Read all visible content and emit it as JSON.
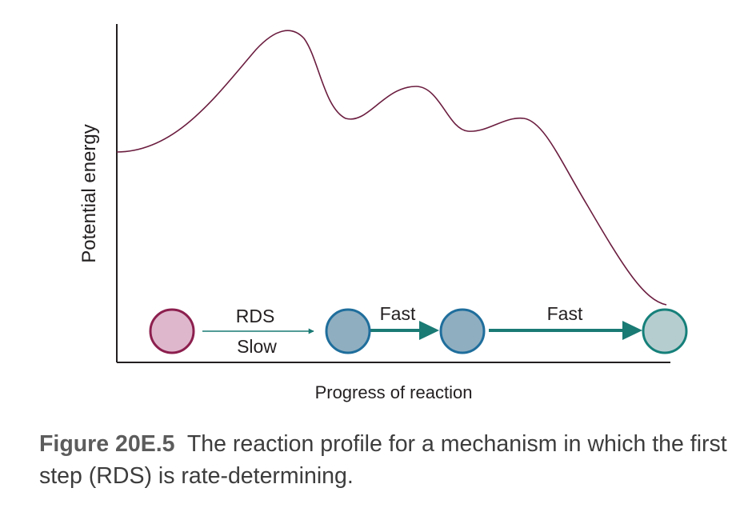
{
  "axes": {
    "y_label": "Potential energy",
    "x_label": "Progress of reaction"
  },
  "steps": {
    "step1_label_top": "RDS",
    "step1_label_bottom": "Slow",
    "step2_label": "Fast",
    "step3_label": "Fast"
  },
  "colors": {
    "curve": "#6b1d3f",
    "axis": "#231f20",
    "arrow": "#1a7a74",
    "reactant_fill": "#dfb7cc",
    "reactant_stroke": "#8c1f4e",
    "intermediate_fill": "#8faec0",
    "intermediate_stroke": "#1f6e9c",
    "product_fill": "#b6cdcf",
    "product_stroke": "#16807a"
  },
  "caption": {
    "label": "Figure 20E.5",
    "text": "The reaction profile for a mechanism in which the first step (RDS) is rate-determining."
  }
}
